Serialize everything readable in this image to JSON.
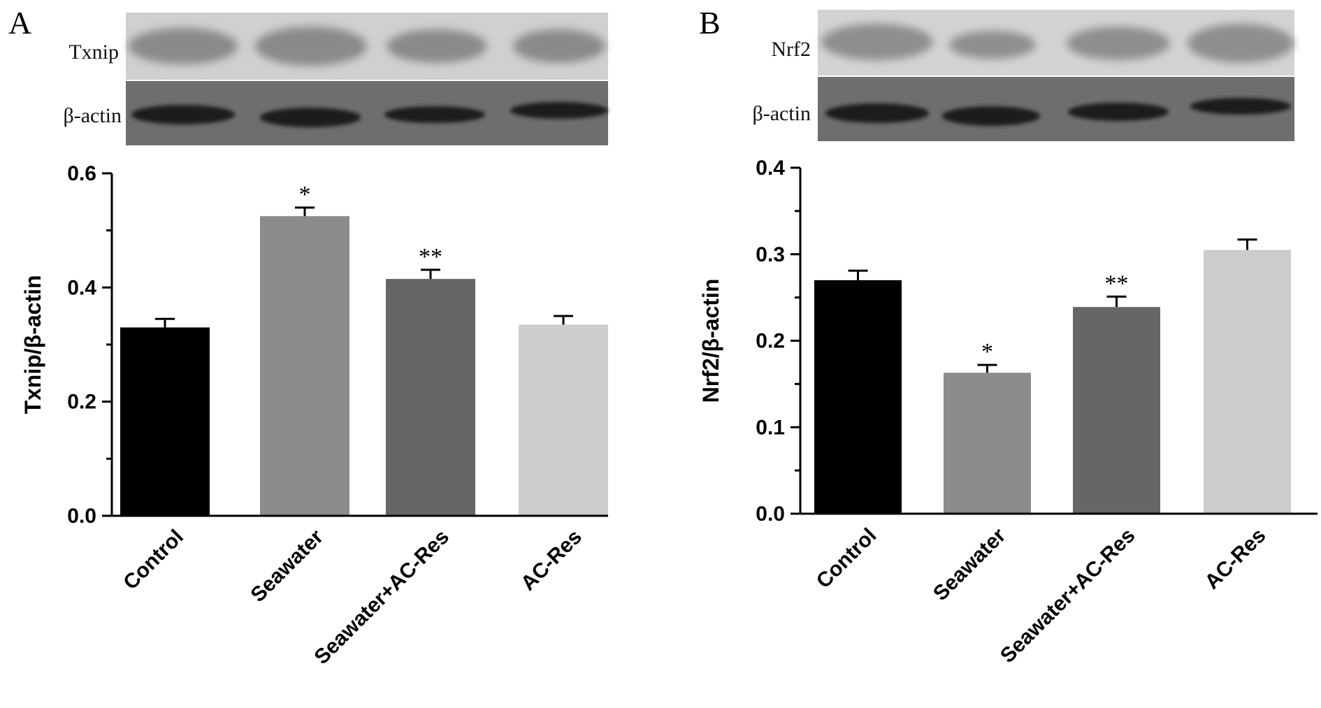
{
  "panels": [
    {
      "letter": "A",
      "blot": {
        "target_label": "Txnip",
        "loading_label": "β-actin"
      }
    },
    {
      "letter": "B",
      "blot": {
        "target_label": "Nrf2",
        "loading_label": "β-actin"
      }
    }
  ],
  "chart_data": [
    {
      "type": "bar",
      "categories": [
        "Control",
        "Seawater",
        "Seawater+AC-Res",
        "AC-Res"
      ],
      "values": [
        0.33,
        0.525,
        0.415,
        0.335
      ],
      "errors": [
        0.015,
        0.015,
        0.016,
        0.015
      ],
      "significance": [
        "",
        "*",
        "**",
        ""
      ],
      "colors": [
        "#000000",
        "#8c8c8c",
        "#666666",
        "#cccccc"
      ],
      "ylabel": "Txnip/β-actin",
      "ylim": [
        0,
        0.6
      ],
      "yticks": [
        "0.0",
        "0.2",
        "0.4",
        "0.6"
      ]
    },
    {
      "type": "bar",
      "categories": [
        "Control",
        "Seawater",
        "Seawater+AC-Res",
        "AC-Res"
      ],
      "values": [
        0.27,
        0.163,
        0.239,
        0.305
      ],
      "errors": [
        0.011,
        0.009,
        0.012,
        0.012
      ],
      "significance": [
        "",
        "*",
        "**",
        ""
      ],
      "colors": [
        "#000000",
        "#8c8c8c",
        "#666666",
        "#cccccc"
      ],
      "ylabel": "Nrf2/β-actin",
      "ylim": [
        0,
        0.4
      ],
      "yticks": [
        "0.0",
        "0.1",
        "0.2",
        "0.3",
        "0.4"
      ]
    }
  ]
}
